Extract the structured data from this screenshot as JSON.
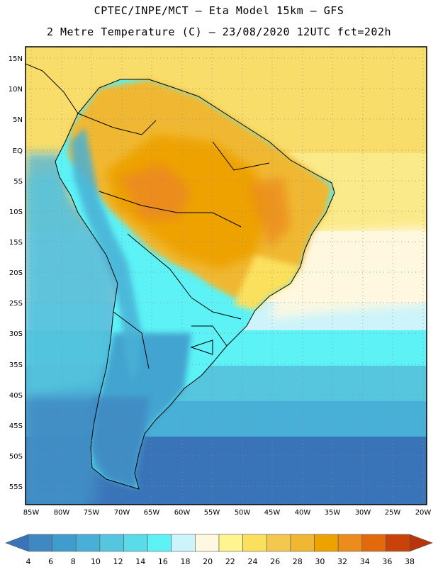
{
  "title": {
    "line1": "CPTEC/INPE/MCT –  Eta Model 15km – GFS",
    "line2": "2 Metre Temperature (C) – 23/08/2020 12UTC fct=202h"
  },
  "map": {
    "lat_labels": [
      "15N",
      "10N",
      "5N",
      "EQ",
      "5S",
      "10S",
      "15S",
      "20S",
      "25S",
      "30S",
      "35S",
      "40S",
      "45S",
      "50S",
      "55S"
    ],
    "lon_labels": [
      "85W",
      "80W",
      "75W",
      "70W",
      "65W",
      "60W",
      "55W",
      "50W",
      "45W",
      "40W",
      "35W",
      "30W",
      "25W",
      "20W"
    ]
  },
  "colorbar": {
    "labels": [
      "4",
      "6",
      "8",
      "10",
      "12",
      "14",
      "16",
      "18",
      "20",
      "22",
      "24",
      "26",
      "28",
      "30",
      "32",
      "34",
      "36",
      "38"
    ],
    "colors": [
      "#3a74b8",
      "#3f88c2",
      "#3f9ccc",
      "#48b0d6",
      "#56c6de",
      "#5adbe9",
      "#5cf2f6",
      "#ccf4fa",
      "#fff8e0",
      "#fff58e",
      "#fbe05d",
      "#f4c74e",
      "#f0b832",
      "#eda200",
      "#ec8c1c",
      "#e36a0c",
      "#c8420a",
      "#b8340a"
    ]
  }
}
